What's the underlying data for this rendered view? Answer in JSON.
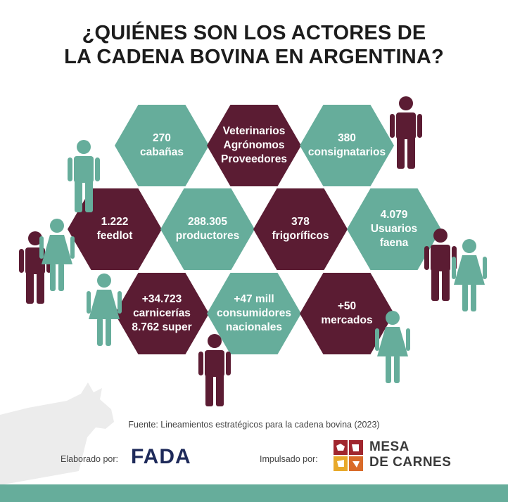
{
  "title": {
    "line1": "¿QUIÉNES SON LOS ACTORES DE",
    "line2": "LA CADENA BOVINA EN ARGENTINA?"
  },
  "colors": {
    "teal": "#66ad9b",
    "maroon": "#5b1c33",
    "navy": "#1e2a5a"
  },
  "hexagons": [
    {
      "lines": [
        "270",
        "cabañas"
      ],
      "color": "teal"
    },
    {
      "lines": [
        "Veterinarios",
        "Agrónomos",
        "Proveedores"
      ],
      "color": "maroon"
    },
    {
      "lines": [
        "380",
        "consignatarios"
      ],
      "color": "teal"
    },
    {
      "lines": [
        "1.222",
        "feedlot"
      ],
      "color": "maroon"
    },
    {
      "lines": [
        "288.305",
        "productores"
      ],
      "color": "teal"
    },
    {
      "lines": [
        "378",
        "frigoríficos"
      ],
      "color": "maroon"
    },
    {
      "lines": [
        "4.079",
        "Usuarios",
        "faena"
      ],
      "color": "teal"
    },
    {
      "lines": [
        "+34.723",
        "carnicerías",
        "8.762 super"
      ],
      "color": "maroon"
    },
    {
      "lines": [
        "+47 mill",
        "consumidores",
        "nacionales"
      ],
      "color": "teal"
    },
    {
      "lines": [
        "+50",
        "mercados"
      ],
      "color": "maroon"
    }
  ],
  "icons": {
    "person": "person-icon",
    "cow": "cow-silhouette-icon",
    "mesa_logo": "mesa-de-carnes-logo-icon"
  },
  "footer": {
    "source": "Fuente: Lineamientos estratégicos para la cadena bovina (2023)",
    "elaborado_label": "Elaborado por:",
    "fada_logo": "FADA",
    "impulsado_label": "Impulsado por:",
    "mesa_line1": "MESA",
    "mesa_line2": "DE CARNES"
  }
}
